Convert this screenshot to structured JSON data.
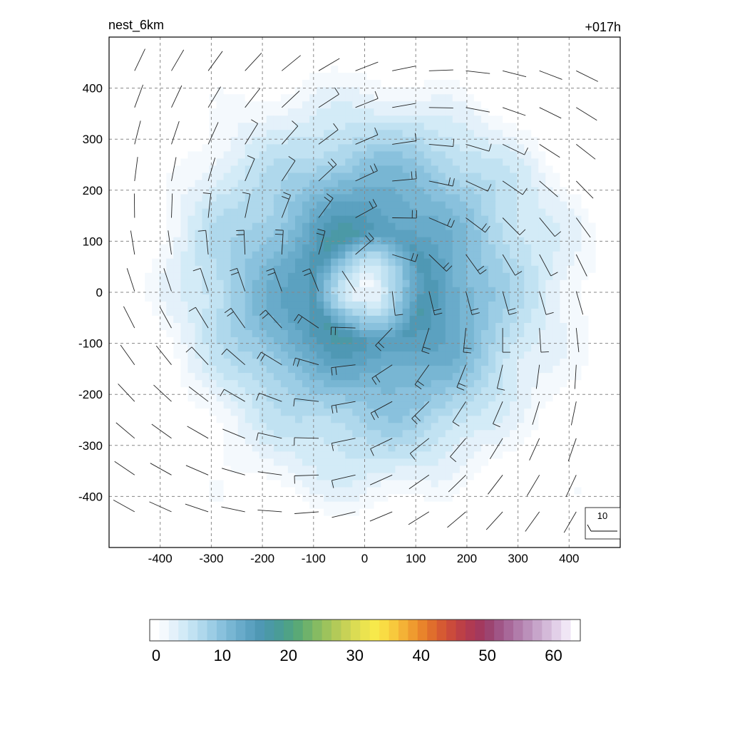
{
  "chart_data": {
    "type": "heatmap",
    "title_left": "nest_6km",
    "title_right": "+017h",
    "xlabel": "",
    "ylabel": "",
    "xlim": [
      -500,
      500
    ],
    "ylim": [
      -500,
      500
    ],
    "xticks": [
      -400,
      -300,
      -200,
      -100,
      0,
      100,
      200,
      300,
      400
    ],
    "yticks": [
      -400,
      -300,
      -200,
      -100,
      0,
      100,
      200,
      300,
      400
    ],
    "grid": true,
    "field": {
      "description_shape": "axisymmetric vortex",
      "center": [
        10,
        10
      ],
      "eye_radius": 40,
      "rmw": 110,
      "peak_value": 17,
      "outer_radius": 470,
      "eye_value": 2
    },
    "wind_barbs": {
      "spacing": 72,
      "x_start": -450,
      "y_start": -430,
      "count_x": 13,
      "count_y": 13,
      "reference_label": "10",
      "reference_position": "bottom-right"
    },
    "colorbar": {
      "min": 0,
      "max": 65,
      "tick_labels": [
        "0",
        "10",
        "20",
        "30",
        "40",
        "50",
        "60"
      ],
      "tick_values": [
        0,
        10,
        20,
        30,
        40,
        50,
        60
      ],
      "colors": [
        "#ffffff",
        "#f4f9fd",
        "#e4f1fa",
        "#d3ebf7",
        "#c1e2f2",
        "#afd8ec",
        "#9ccde5",
        "#89c1dd",
        "#78b6d3",
        "#69abca",
        "#5ba1c0",
        "#4f98b4",
        "#4b99a6",
        "#4a9c97",
        "#4fa286",
        "#5aa976",
        "#6fb26b",
        "#86bb62",
        "#9dc35c",
        "#b3ca58",
        "#c8d256",
        "#dbdc53",
        "#ebe34f",
        "#f7e94b",
        "#f9dc44",
        "#f7c93d",
        "#f4b236",
        "#ef9b2f",
        "#e9842b",
        "#e06e2c",
        "#d65a32",
        "#cb4b3b",
        "#bd4046",
        "#b03a52",
        "#a3395e",
        "#9c4470",
        "#a05586",
        "#a86899",
        "#b17caa",
        "#bb90ba",
        "#c7a5ca",
        "#d4bad9",
        "#e2d0e8",
        "#f0e6f5",
        "#ffffff"
      ]
    }
  }
}
